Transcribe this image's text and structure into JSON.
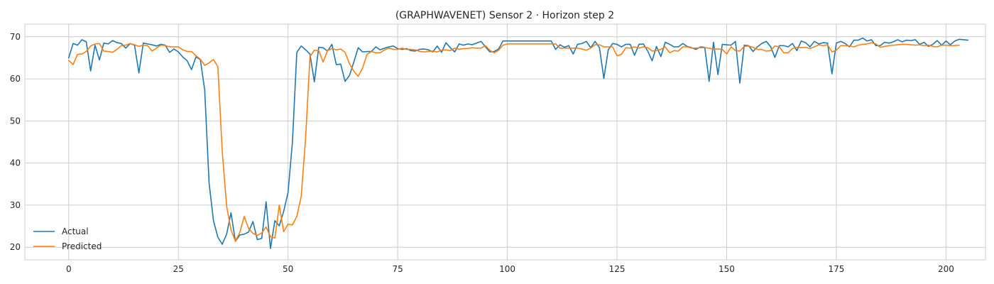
{
  "chart_data": {
    "type": "line",
    "title": "(GRAPHWAVENET) Sensor 2 · Horizon step 2",
    "xlabel": "",
    "ylabel": "",
    "xlim": [
      -10,
      209
    ],
    "ylim": [
      17,
      73
    ],
    "xticks": [
      0,
      25,
      50,
      75,
      100,
      125,
      150,
      175,
      200
    ],
    "xtick_labels": [
      "0",
      "25",
      "50",
      "75",
      "100",
      "125",
      "150",
      "175",
      "200"
    ],
    "yticks": [
      20,
      30,
      40,
      50,
      60,
      70
    ],
    "ytick_labels": [
      "20",
      "30",
      "40",
      "50",
      "60",
      "70"
    ],
    "grid": true,
    "legend_position": "lower-left",
    "series": [
      {
        "name": "Actual",
        "color": "#1f77b4",
        "values": [
          65.0,
          68.4,
          68.0,
          69.3,
          68.8,
          61.9,
          68.0,
          64.5,
          68.5,
          68.3,
          69.1,
          68.6,
          68.4,
          67.3,
          68.4,
          68.0,
          61.4,
          68.5,
          68.3,
          68.1,
          67.8,
          68.2,
          68.0,
          66.3,
          67.1,
          66.4,
          65.2,
          64.3,
          62.2,
          65.2,
          64.6,
          57.4,
          35.3,
          26.3,
          22.4,
          20.7,
          23.1,
          28.2,
          21.4,
          22.9,
          23.1,
          23.6,
          26.1,
          21.8,
          22.1,
          30.8,
          19.7,
          26.3,
          25.1,
          28.5,
          33.0,
          44.9,
          66.3,
          67.8,
          66.9,
          65.9,
          59.3,
          67.5,
          67.4,
          66.6,
          68.2,
          63.4,
          63.5,
          59.4,
          60.8,
          64.0,
          67.4,
          66.4,
          66.5,
          66.5,
          67.6,
          66.9,
          67.3,
          67.6,
          67.8,
          67.2,
          67.0,
          67.2,
          66.7,
          66.6,
          67.0,
          67.1,
          66.9,
          66.4,
          67.8,
          66.3,
          68.6,
          67.4,
          66.4,
          68.3,
          68.0,
          68.3,
          68.1,
          68.5,
          68.9,
          67.6,
          66.4,
          66.5,
          67.1,
          69.0,
          69.0,
          69.0,
          69.0,
          69.0,
          69.0,
          69.0,
          69.0,
          69.0,
          69.0,
          69.0,
          69.0,
          67.0,
          68.1,
          67.5,
          67.9,
          65.9,
          68.2,
          68.4,
          68.9,
          67.4,
          68.9,
          67.4,
          60.1,
          66.9,
          68.4,
          68.2,
          67.6,
          68.2,
          68.2,
          65.6,
          68.2,
          68.3,
          66.6,
          64.3,
          67.7,
          65.3,
          68.7,
          68.2,
          67.6,
          67.6,
          68.4,
          67.7,
          67.4,
          67.0,
          67.6,
          67.5,
          59.4,
          68.7,
          61.0,
          68.2,
          68.1,
          68.0,
          68.9,
          59.0,
          68.0,
          67.9,
          66.5,
          67.6,
          68.4,
          68.9,
          67.7,
          65.1,
          67.9,
          67.9,
          67.6,
          68.4,
          66.7,
          69.0,
          68.6,
          67.6,
          68.9,
          68.3,
          68.6,
          68.5,
          61.2,
          68.5,
          68.9,
          68.4,
          67.6,
          69.2,
          69.2,
          69.7,
          69.0,
          69.3,
          67.9,
          67.9,
          68.7,
          68.5,
          68.8,
          69.3,
          68.8,
          69.2,
          69.1,
          69.3,
          68.2,
          68.7,
          67.7,
          68.2,
          69.1,
          68.0,
          69.0,
          68.1,
          69.0,
          69.4,
          69.3,
          69.2
        ]
      },
      {
        "name": "Predicted",
        "color": "#ff7f0e",
        "values": [
          64.4,
          63.4,
          65.8,
          65.9,
          66.5,
          67.8,
          68.3,
          68.4,
          66.6,
          66.5,
          66.3,
          67.0,
          67.9,
          68.0,
          68.4,
          68.1,
          67.7,
          68.0,
          67.9,
          66.6,
          67.3,
          68.0,
          67.9,
          67.6,
          67.6,
          67.6,
          66.9,
          66.5,
          66.5,
          65.5,
          64.7,
          63.2,
          63.8,
          64.6,
          62.9,
          42.7,
          29.8,
          24.1,
          21.5,
          23.5,
          27.3,
          24.5,
          23.3,
          22.8,
          23.4,
          24.8,
          22.5,
          22.2,
          30.0,
          23.7,
          25.5,
          25.3,
          27.3,
          32.1,
          45.9,
          65.3,
          66.8,
          66.7,
          64.0,
          66.7,
          67.2,
          66.9,
          67.1,
          66.3,
          63.6,
          61.8,
          60.6,
          62.6,
          65.8,
          66.5,
          66.2,
          66.2,
          66.9,
          67.3,
          67.0,
          67.0,
          67.3,
          67.0,
          67.0,
          66.9,
          66.5,
          66.4,
          66.5,
          66.6,
          66.4,
          66.8,
          66.9,
          66.7,
          67.3,
          67.0,
          67.2,
          67.2,
          67.4,
          67.3,
          67.3,
          67.9,
          66.8,
          66.2,
          66.8,
          68.0,
          68.3,
          68.3,
          68.3,
          68.3,
          68.3,
          68.3,
          68.3,
          68.3,
          68.3,
          68.3,
          68.3,
          68.3,
          67.3,
          67.3,
          67.3,
          67.3,
          67.3,
          67.1,
          66.8,
          67.3,
          68.1,
          68.1,
          67.6,
          67.6,
          67.6,
          65.5,
          65.8,
          67.4,
          67.3,
          67.6,
          67.3,
          67.6,
          67.4,
          66.6,
          66.7,
          67.0,
          67.6,
          66.2,
          66.7,
          66.6,
          67.6,
          67.6,
          67.3,
          67.3,
          67.4,
          67.4,
          67.3,
          67.0,
          67.1,
          67.0,
          65.9,
          67.6,
          66.7,
          66.6,
          67.7,
          67.8,
          67.5,
          67.0,
          67.0,
          66.6,
          66.7,
          67.8,
          67.6,
          66.2,
          66.2,
          67.2,
          67.5,
          67.4,
          67.5,
          67.2,
          67.6,
          68.1,
          67.9,
          68.1,
          66.4,
          66.8,
          67.9,
          67.9,
          67.8,
          67.6,
          68.0,
          68.2,
          68.3,
          68.6,
          68.3,
          67.5,
          67.7,
          67.9,
          68.0,
          68.1,
          68.2,
          68.2,
          68.1,
          68.0,
          68.1,
          67.9,
          68.0,
          67.7,
          67.6,
          68.0,
          68.0,
          67.9,
          67.9,
          68.0
        ]
      }
    ]
  }
}
